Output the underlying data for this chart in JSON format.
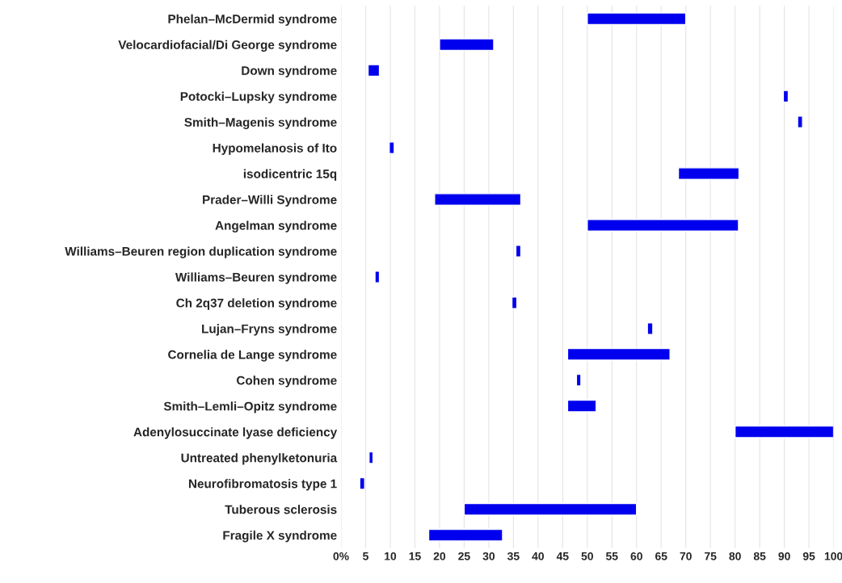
{
  "chart_data": {
    "type": "bar",
    "orientation": "horizontal",
    "categories": [
      "Phelan–McDermid syndrome",
      "Velocardiofacial/Di George syndrome",
      "Down syndrome",
      "Potocki–Lupsky syndrome",
      "Smith–Magenis syndrome",
      "Hypomelanosis of Ito",
      "isodicentric 15q",
      "Prader–Willi Syndrome",
      "Angelman syndrome",
      "Williams–Beuren region duplication syndrome",
      "Williams–Beuren syndrome",
      "Ch 2q37 deletion syndrome",
      "Lujan–Fryns syndrome",
      "Cornelia de Lange syndrome",
      "Cohen syndrome",
      "Smith–Lemli–Opitz syndrome",
      "Adenylosuccinate lyase deficiency",
      "Untreated phenylketonuria",
      "Neurofibromatosis type 1",
      "Tuberous sclerosis",
      "Fragile X syndrome"
    ],
    "base": [
      50,
      20,
      5.5,
      89.8,
      92.7,
      9.8,
      68.5,
      19,
      50,
      35.5,
      6.9,
      34.7,
      62.2,
      46,
      47.8,
      46,
      80,
      5.7,
      3.8,
      25,
      17.8
    ],
    "values": [
      20,
      11,
      2.3,
      1,
      1,
      1,
      12.3,
      17.5,
      30.7,
      1,
      0.9,
      1,
      1.1,
      20.8,
      0.9,
      5.8,
      20,
      0.8,
      1,
      35,
      15
    ],
    "color": "#0000ee",
    "xlim": [
      0,
      100
    ],
    "xticks": [
      {
        "value": 0,
        "label": "0%"
      },
      5,
      10,
      15,
      20,
      25,
      30,
      35,
      40,
      45,
      50,
      55,
      60,
      65,
      70,
      75,
      80,
      85,
      90,
      95,
      100
    ],
    "grid": "x"
  }
}
